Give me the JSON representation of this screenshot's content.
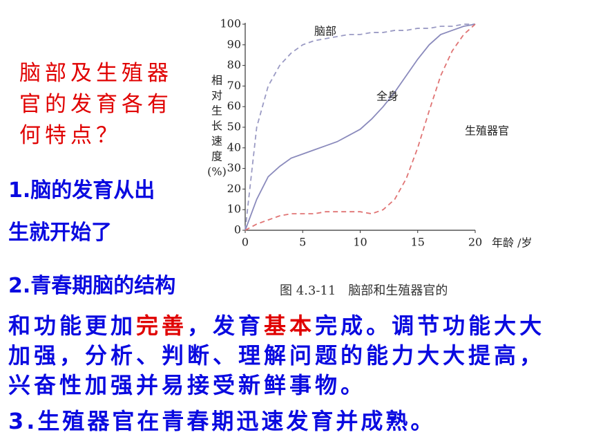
{
  "chart_data": {
    "type": "line",
    "caption": "图 4.3-11　脑部和生殖器官的",
    "x_label": "年龄 /岁",
    "y_label": [
      "相",
      "对",
      "生",
      "长",
      "速",
      "度",
      "(%)"
    ],
    "x": [
      0,
      1,
      2,
      3,
      4,
      5,
      6,
      7,
      8,
      9,
      10,
      11,
      12,
      13,
      14,
      15,
      16,
      17,
      18,
      19,
      20
    ],
    "xlim": [
      0,
      20
    ],
    "xticks": [
      0,
      5,
      10,
      15,
      20
    ],
    "ylim": [
      0,
      100
    ],
    "yticks": [
      0,
      10,
      20,
      30,
      40,
      50,
      60,
      70,
      80,
      90,
      100
    ],
    "series": [
      {
        "name": "脑部",
        "color": "#9a9ac4",
        "dashed": true,
        "values": [
          0,
          50,
          70,
          80,
          86,
          90,
          92,
          93,
          94,
          95,
          95,
          96,
          96,
          97,
          97,
          98,
          98,
          99,
          99,
          100,
          100
        ]
      },
      {
        "name": "全身",
        "color": "#8a8abc",
        "dashed": false,
        "values": [
          0,
          15,
          26,
          31,
          35,
          37,
          39,
          41,
          43,
          46,
          49,
          54,
          60,
          67,
          75,
          83,
          90,
          95,
          97,
          99,
          100
        ]
      },
      {
        "name": "生殖器官",
        "color": "#e07474",
        "dashed": true,
        "values": [
          0,
          3,
          5,
          7,
          8,
          8,
          8,
          9,
          9,
          9,
          9,
          8,
          10,
          15,
          25,
          40,
          58,
          75,
          87,
          95,
          100
        ]
      }
    ]
  },
  "text": {
    "question": [
      "脑部及生殖器",
      "官的发育各有",
      "何特点？"
    ],
    "point1": [
      "1.脑的发育从出",
      "生就开始了"
    ],
    "point2_lead": "2.青春期脑的结构",
    "point2_runs": [
      {
        "text": "和功能更加",
        "color": "#0a0ae0"
      },
      {
        "text": "完善",
        "color": "#e00000"
      },
      {
        "text": "，发育",
        "color": "#0a0ae0"
      },
      {
        "text": "基本",
        "color": "#e00000"
      },
      {
        "text": "完成。调节功能大大加强，分析、判断、理解问题的能力大大提高，兴奋性加强并易接受新鲜事物。",
        "color": "#0a0ae0"
      }
    ],
    "point3": "3.生殖器官在青春期迅速发育并成熟。"
  }
}
